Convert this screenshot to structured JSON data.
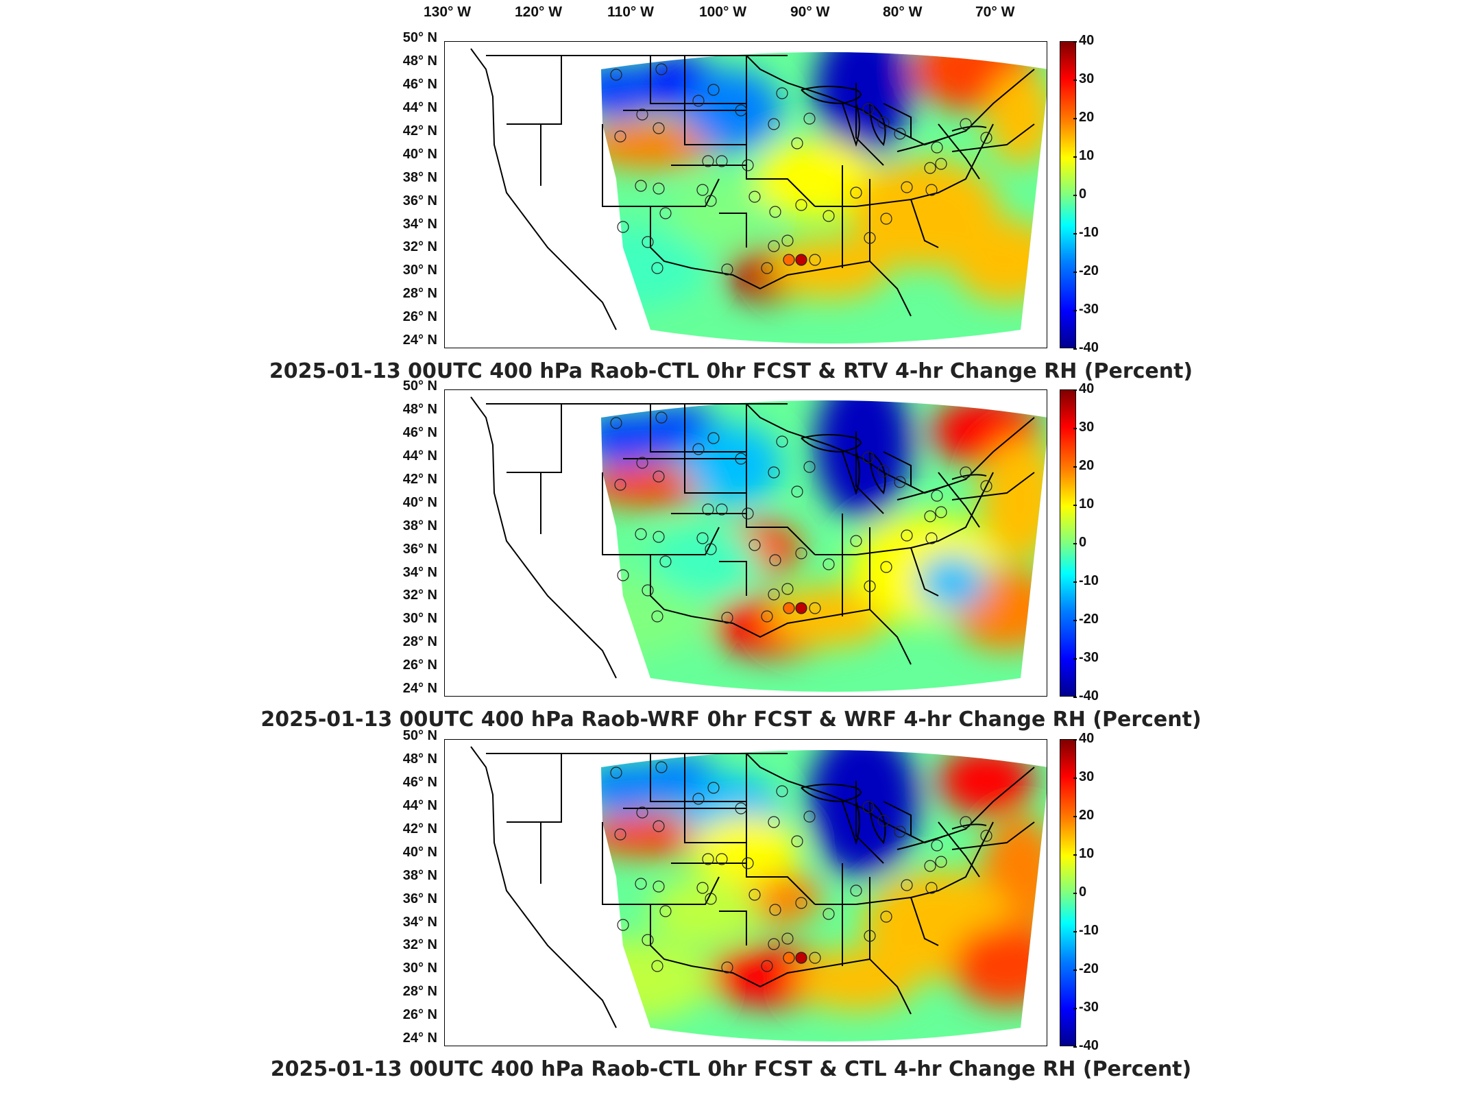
{
  "longitude_labels": [
    "130°W",
    "120°W",
    "110°W",
    "100°W",
    "90°W",
    "80°W",
    "70°W"
  ],
  "latitude_labels": [
    "50°N",
    "48°N",
    "46°N",
    "44°N",
    "42°N",
    "40°N",
    "38°N",
    "36°N",
    "34°N",
    "32°N",
    "30°N",
    "28°N",
    "26°N",
    "24°N"
  ],
  "colorbar": {
    "ticks": [
      "40",
      "30",
      "20",
      "10",
      "0",
      "-10",
      "-20",
      "-30",
      "-40"
    ],
    "min": -40,
    "max": 40,
    "colormap": "jet"
  },
  "panels": [
    {
      "title": "2025-01-13 00UTC 400 hPa Raob-CTL 0hr FCST & RTV 4-hr Change RH (Percent)"
    },
    {
      "title": "2025-01-13 00UTC 400 hPa Raob-WRF 0hr FCST & WRF 4-hr Change RH (Percent)"
    },
    {
      "title": "2025-01-13 00UTC 400 hPa Raob-CTL 0hr FCST & CTL 4-hr Change RH (Percent)"
    }
  ]
}
